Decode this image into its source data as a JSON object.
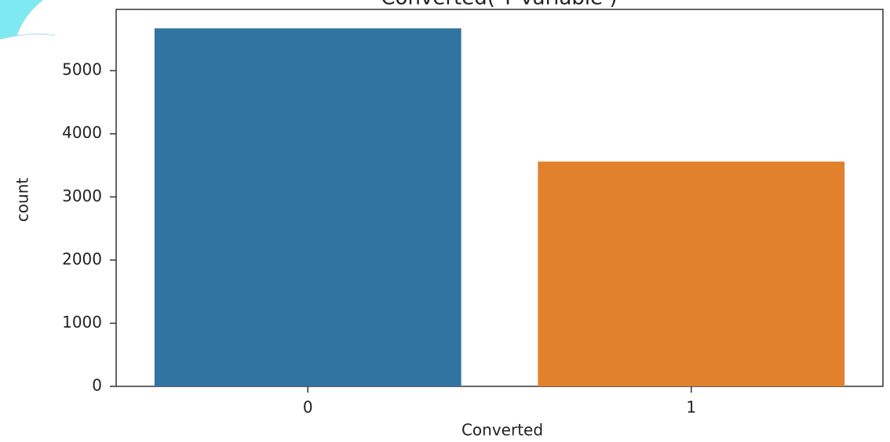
{
  "chart_data": {
    "type": "bar",
    "title": "Converted( Y variable )",
    "x_label": "Converted",
    "y_label": "count",
    "categories": [
      "0",
      "1"
    ],
    "values": [
      5670,
      3560
    ],
    "colors": [
      "#3274a1",
      "#e1812c"
    ],
    "ylim": [
      0,
      5970
    ],
    "yticks": [
      0,
      1000,
      2000,
      3000,
      4000,
      5000
    ],
    "grid": false
  }
}
